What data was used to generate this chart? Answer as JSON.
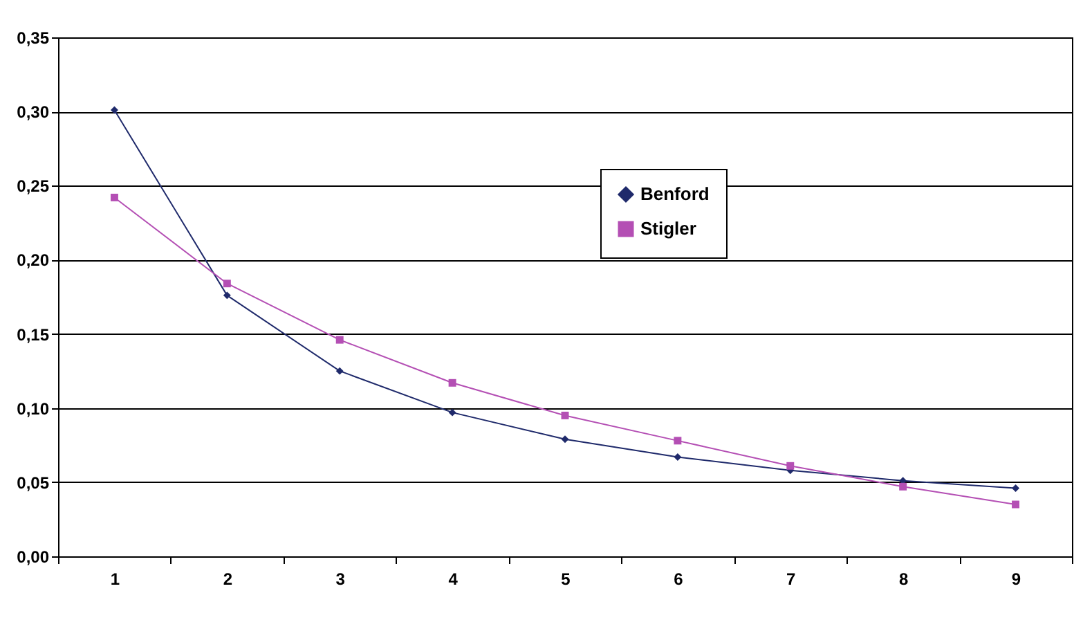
{
  "chart_data": {
    "type": "line",
    "categories": [
      "1",
      "2",
      "3",
      "4",
      "5",
      "6",
      "7",
      "8",
      "9"
    ],
    "series": [
      {
        "name": "Benford",
        "color": "#1f2a6b",
        "marker": "diamond",
        "values": [
          0.301,
          0.176,
          0.125,
          0.097,
          0.079,
          0.067,
          0.058,
          0.051,
          0.046
        ]
      },
      {
        "name": "Stigler",
        "color": "#b44fb4",
        "marker": "square",
        "values": [
          0.242,
          0.184,
          0.146,
          0.117,
          0.095,
          0.078,
          0.061,
          0.047,
          0.035
        ]
      }
    ],
    "ylim": [
      0,
      0.35
    ],
    "yticks": [
      {
        "value": 0,
        "label": "0,00"
      },
      {
        "value": 0.05,
        "label": "0,05"
      },
      {
        "value": 0.1,
        "label": "0,10"
      },
      {
        "value": 0.15,
        "label": "0,15"
      },
      {
        "value": 0.2,
        "label": "0,20"
      },
      {
        "value": 0.25,
        "label": "0,25"
      },
      {
        "value": 0.3,
        "label": "0,30"
      },
      {
        "value": 0.35,
        "label": "0,35"
      }
    ],
    "grid": "y",
    "legend": "top right",
    "line_style": "solid"
  }
}
